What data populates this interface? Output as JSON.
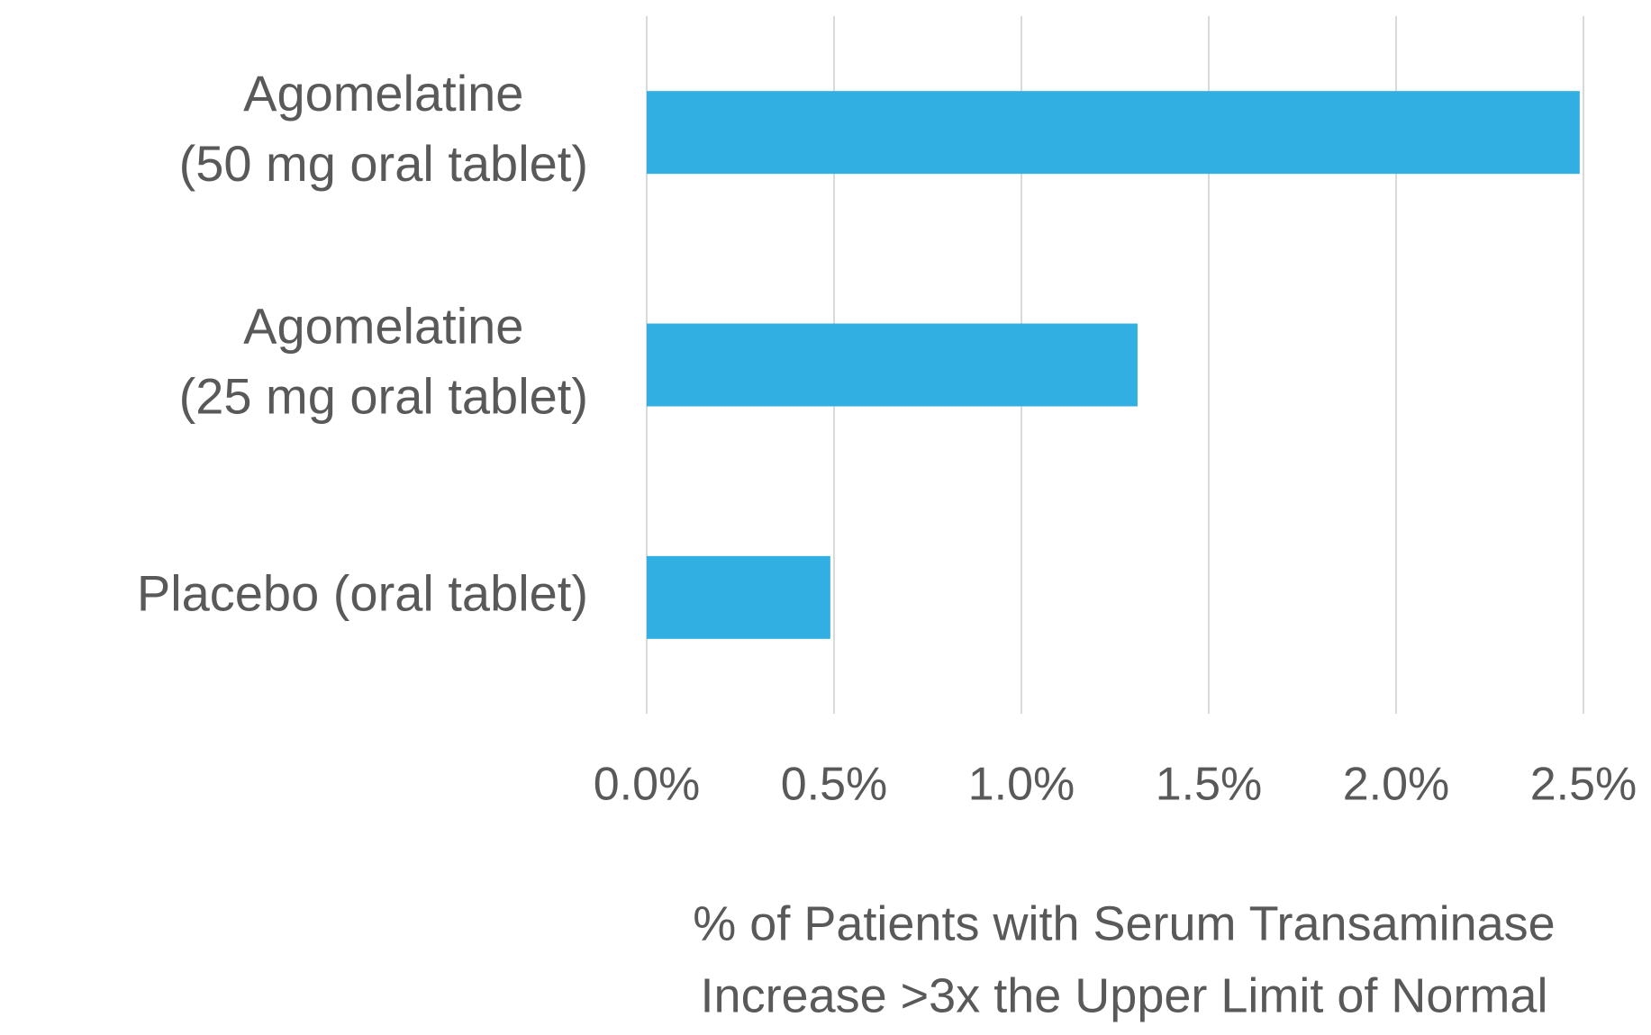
{
  "chart_data": {
    "type": "hbar",
    "categories": [
      [
        "Agomelatine",
        "(50 mg oral tablet)"
      ],
      [
        "Agomelatine",
        "(25 mg oral tablet)"
      ],
      [
        "Placebo (oral tablet)"
      ]
    ],
    "values": [
      2.49,
      1.31,
      0.49
    ],
    "color": "#31aee2",
    "xlim": [
      0,
      2.5
    ],
    "xticks": [
      {
        "value": 0,
        "label": "0.0%"
      },
      {
        "value": 0.5,
        "label": "0.5%"
      },
      {
        "value": 1,
        "label": "1.0%"
      },
      {
        "value": 1.5,
        "label": "1.5%"
      },
      {
        "value": 2,
        "label": "2.0%"
      },
      {
        "value": 2.5,
        "label": "2.5%"
      }
    ],
    "xlabel": [
      "% of Patients with Serum Transaminase",
      "Increase >3x the Upper Limit of Normal"
    ],
    "grid": true
  }
}
